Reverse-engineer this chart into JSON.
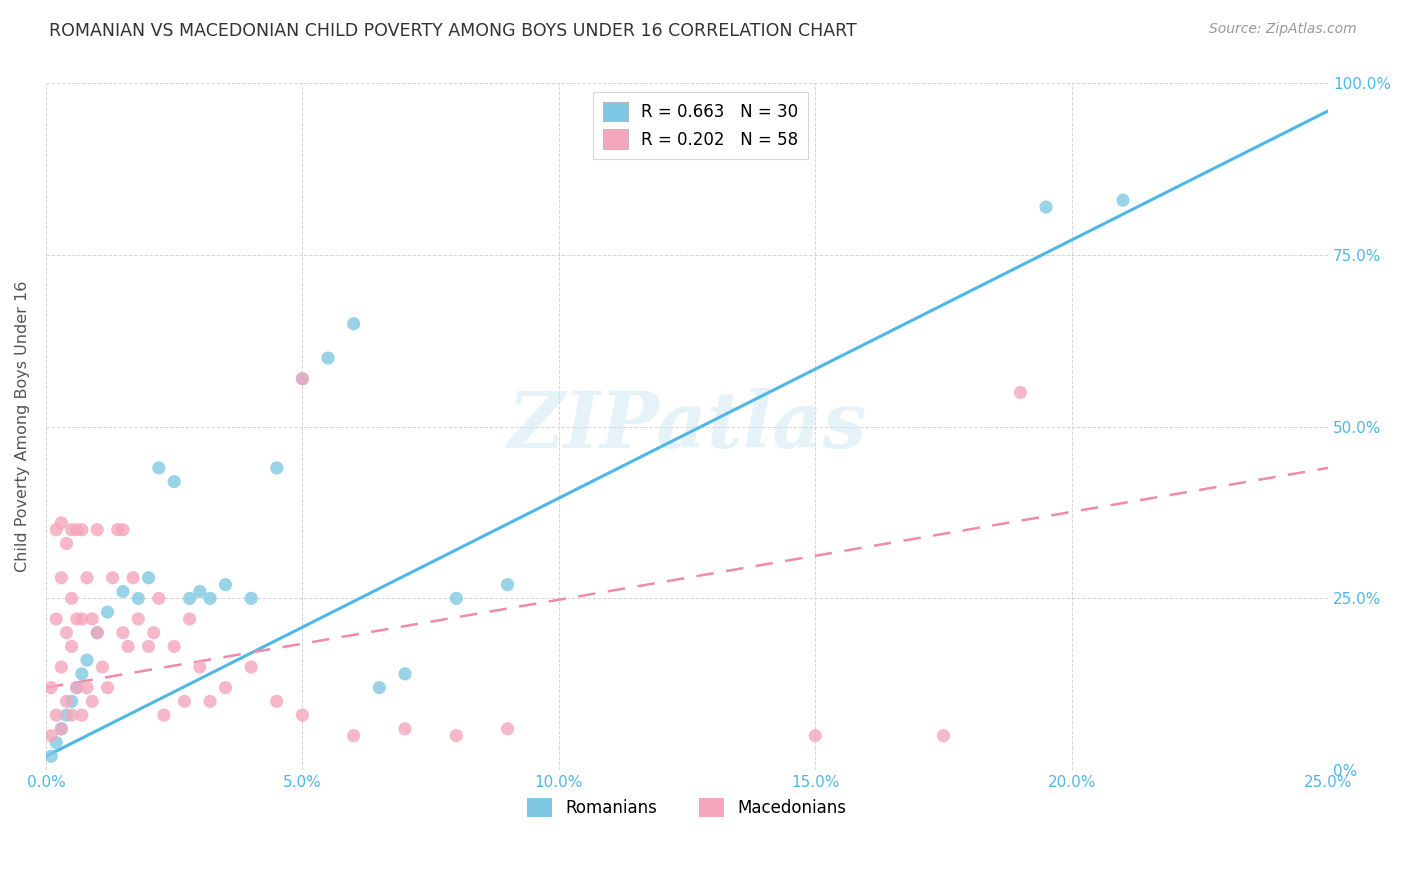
{
  "title": "ROMANIAN VS MACEDONIAN CHILD POVERTY AMONG BOYS UNDER 16 CORRELATION CHART",
  "source": "Source: ZipAtlas.com",
  "ylabel": "Child Poverty Among Boys Under 16",
  "xlim": [
    0.0,
    0.25
  ],
  "ylim": [
    0.0,
    1.0
  ],
  "xticks": [
    0.0,
    0.05,
    0.1,
    0.15,
    0.2,
    0.25
  ],
  "yticks": [
    0.0,
    0.25,
    0.5,
    0.75,
    1.0
  ],
  "xtick_labels": [
    "0.0%",
    "5.0%",
    "10.0%",
    "15.0%",
    "20.0%",
    "25.0%"
  ],
  "ytick_labels": [
    "0%",
    "25.0%",
    "50.0%",
    "75.0%",
    "100.0%"
  ],
  "romanian_color": "#7ec8e3",
  "macedonian_color": "#f4a6bc",
  "line_blue": "#4db8e8",
  "line_pink": "#f08aaa",
  "romanian_R": 0.663,
  "romanian_N": 30,
  "macedonian_R": 0.202,
  "macedonian_N": 58,
  "watermark": "ZIPatlas",
  "legend_romanian": "Romanians",
  "legend_macedonian": "Macedonians",
  "romanian_x": [
    0.001,
    0.002,
    0.003,
    0.004,
    0.005,
    0.006,
    0.007,
    0.008,
    0.01,
    0.012,
    0.015,
    0.018,
    0.02,
    0.022,
    0.025,
    0.028,
    0.03,
    0.032,
    0.035,
    0.04,
    0.045,
    0.05,
    0.055,
    0.06,
    0.065,
    0.07,
    0.08,
    0.09,
    0.195,
    0.21
  ],
  "romanian_y": [
    0.02,
    0.04,
    0.06,
    0.08,
    0.1,
    0.12,
    0.14,
    0.16,
    0.2,
    0.23,
    0.26,
    0.25,
    0.28,
    0.44,
    0.42,
    0.25,
    0.26,
    0.25,
    0.27,
    0.25,
    0.44,
    0.57,
    0.6,
    0.65,
    0.12,
    0.14,
    0.25,
    0.27,
    0.82,
    0.83
  ],
  "macedonian_x": [
    0.001,
    0.001,
    0.002,
    0.002,
    0.002,
    0.003,
    0.003,
    0.003,
    0.003,
    0.004,
    0.004,
    0.004,
    0.005,
    0.005,
    0.005,
    0.005,
    0.006,
    0.006,
    0.006,
    0.007,
    0.007,
    0.007,
    0.008,
    0.008,
    0.009,
    0.009,
    0.01,
    0.01,
    0.011,
    0.012,
    0.013,
    0.014,
    0.015,
    0.015,
    0.016,
    0.017,
    0.018,
    0.02,
    0.021,
    0.022,
    0.023,
    0.025,
    0.027,
    0.028,
    0.03,
    0.032,
    0.035,
    0.04,
    0.045,
    0.05,
    0.06,
    0.07,
    0.08,
    0.09,
    0.15,
    0.175,
    0.19,
    0.05
  ],
  "macedonian_y": [
    0.05,
    0.12,
    0.08,
    0.22,
    0.35,
    0.06,
    0.15,
    0.28,
    0.36,
    0.1,
    0.2,
    0.33,
    0.08,
    0.18,
    0.25,
    0.35,
    0.12,
    0.22,
    0.35,
    0.08,
    0.22,
    0.35,
    0.12,
    0.28,
    0.1,
    0.22,
    0.2,
    0.35,
    0.15,
    0.12,
    0.28,
    0.35,
    0.2,
    0.35,
    0.18,
    0.28,
    0.22,
    0.18,
    0.2,
    0.25,
    0.08,
    0.18,
    0.1,
    0.22,
    0.15,
    0.1,
    0.12,
    0.15,
    0.1,
    0.08,
    0.05,
    0.06,
    0.05,
    0.06,
    0.05,
    0.05,
    0.55,
    0.57
  ]
}
